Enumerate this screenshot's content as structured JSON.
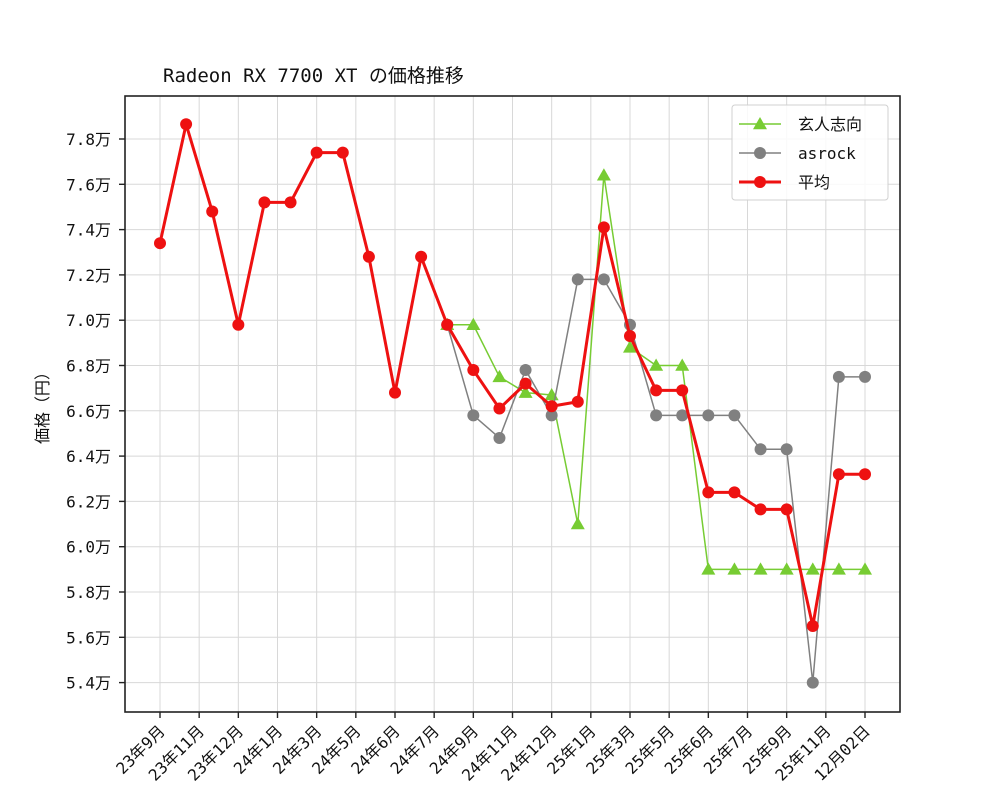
{
  "chart_data": {
    "type": "line",
    "title": "Radeon RX 7700 XT の価格推移",
    "xlabel": "",
    "ylabel": "価格（円）",
    "ylim": [
      5.28,
      7.99
    ],
    "y_unit": "万円",
    "grid": true,
    "legend_position": "upper right",
    "x_tick_labels": [
      "23年9月",
      "23年11月",
      "23年12月",
      "24年1月",
      "24年3月",
      "24年5月",
      "24年6月",
      "24年7月",
      "24年9月",
      "24年11月",
      "24年12月",
      "25年1月",
      "25年3月",
      "25年5月",
      "25年6月",
      "25年7月",
      "25年9月",
      "25年11月",
      "12月02日"
    ],
    "y_ticks": [
      5.4,
      5.6,
      5.8,
      6.0,
      6.2,
      6.4,
      6.6,
      6.8,
      7.0,
      7.2,
      7.4,
      7.6,
      7.8
    ],
    "y_tick_labels": [
      "5.4万",
      "5.6万",
      "5.8万",
      "6.0万",
      "6.2万",
      "6.4万",
      "6.6万",
      "6.8万",
      "7.0万",
      "7.2万",
      "7.4万",
      "7.6万",
      "7.8万"
    ],
    "n_points": 28,
    "series": [
      {
        "name": "玄人志向",
        "color": "#77cc33",
        "marker": "triangle",
        "start_index": 11,
        "values": [
          6.98,
          6.98,
          6.75,
          6.68,
          6.67,
          6.1,
          7.64,
          6.88,
          6.8,
          6.8,
          5.9,
          5.9,
          5.9,
          5.9,
          5.9,
          5.9,
          5.9
        ]
      },
      {
        "name": "asrock",
        "color": "#808080",
        "marker": "circle",
        "start_index": 11,
        "values": [
          6.98,
          6.58,
          6.48,
          6.78,
          6.58,
          7.18,
          7.18,
          6.98,
          6.58,
          6.58,
          6.58,
          6.58,
          6.43,
          6.43,
          5.4,
          6.75,
          6.75
        ]
      },
      {
        "name": "平均",
        "color": "#ee1111",
        "marker": "circle",
        "start_index": 0,
        "values": [
          7.34,
          7.865,
          7.48,
          6.98,
          7.52,
          7.52,
          7.74,
          7.74,
          7.28,
          6.68,
          7.28,
          6.98,
          6.78,
          6.61,
          6.72,
          6.62,
          6.64,
          7.41,
          6.93,
          6.69,
          6.69,
          6.24,
          6.24,
          6.165,
          6.165,
          5.65,
          6.32,
          6.32
        ]
      }
    ]
  }
}
